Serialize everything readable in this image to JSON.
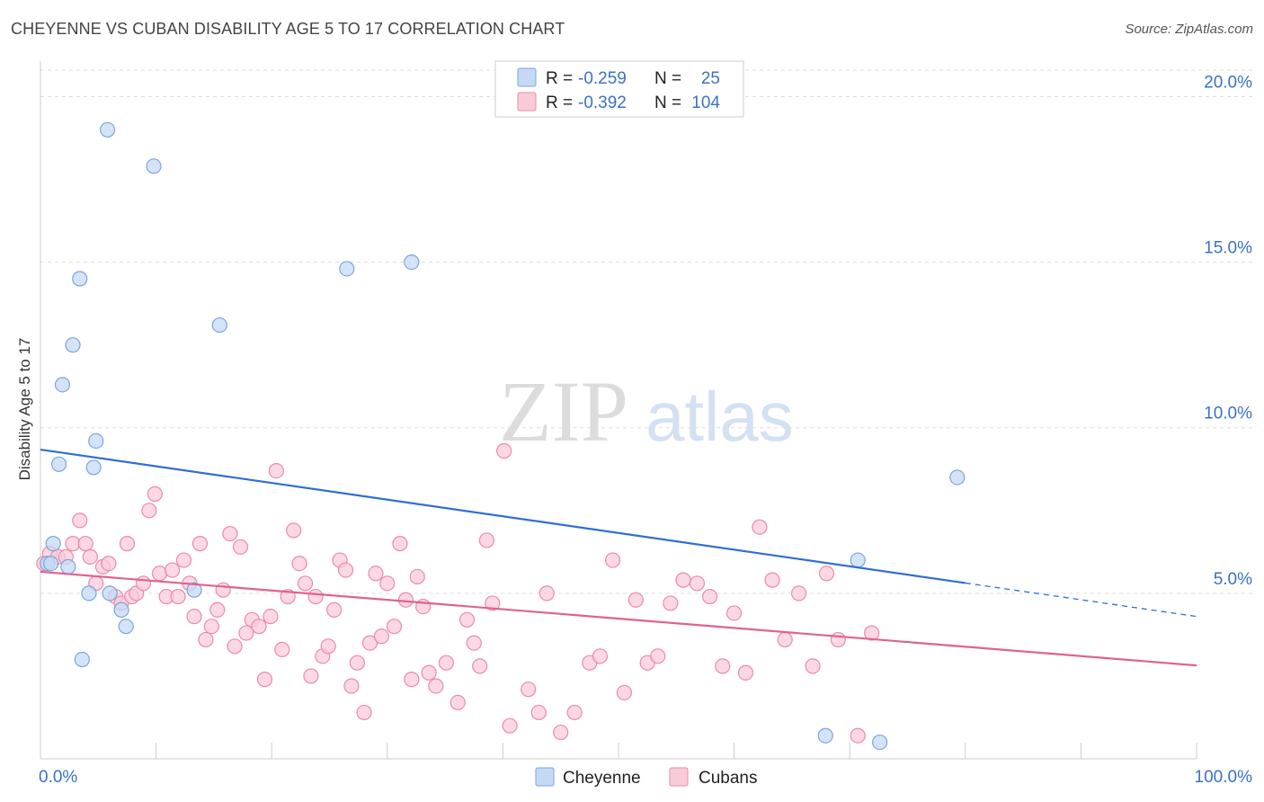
{
  "header": {
    "title": "CHEYENNE VS CUBAN DISABILITY AGE 5 TO 17 CORRELATION CHART",
    "source": "Source: ZipAtlas.com"
  },
  "watermark": {
    "zip": "ZIP",
    "atlas": "atlas"
  },
  "colors": {
    "cheyenne_fill": "#c5d9f5",
    "cheyenne_stroke": "#7aa6df",
    "cheyenne_line": "#2f6fce",
    "cubans_fill": "#f9cbd9",
    "cubans_stroke": "#ec8aa8",
    "cubans_line": "#e0628f",
    "axis_text": "#3a72c4",
    "grid": "#dddddd"
  },
  "legend": {
    "rows": [
      {
        "r_label": "R = ",
        "r_value": "-0.259",
        "n_label": "N = ",
        "n_value": "25"
      },
      {
        "r_label": "R = ",
        "r_value": "-0.392",
        "n_label": "N = ",
        "n_value": "104"
      }
    ]
  },
  "chart_data": {
    "type": "scatter",
    "title": "CHEYENNE VS CUBAN DISABILITY AGE 5 TO 17 CORRELATION CHART",
    "xlabel": "",
    "ylabel": "Disability Age 5 to 17",
    "xlim": [
      0,
      100
    ],
    "ylim": [
      0,
      20.8
    ],
    "x_tick_labels": [
      "0.0%",
      "100.0%"
    ],
    "y_ticks": [
      5,
      10,
      15,
      20
    ],
    "y_tick_labels": [
      "5.0%",
      "10.0%",
      "15.0%",
      "20.0%"
    ],
    "grid": true,
    "legend_position": "bottom",
    "series": [
      {
        "name": "Cheyenne",
        "r": -0.259,
        "n": 25,
        "trend": {
          "x0": 0,
          "y0": 9.34,
          "x1": 80,
          "y1": 5.31,
          "dashed_to_x": 100,
          "dashed_to_y": 4.3
        },
        "points": [
          [
            5.8,
            19.0
          ],
          [
            9.8,
            17.9
          ],
          [
            3.4,
            14.5
          ],
          [
            2.8,
            12.5
          ],
          [
            1.9,
            11.3
          ],
          [
            15.5,
            13.1
          ],
          [
            26.5,
            14.8
          ],
          [
            32.1,
            15.0
          ],
          [
            4.8,
            9.6
          ],
          [
            1.6,
            8.9
          ],
          [
            4.6,
            8.8
          ],
          [
            1.1,
            6.5
          ],
          [
            0.6,
            5.9
          ],
          [
            0.9,
            5.9
          ],
          [
            2.4,
            5.8
          ],
          [
            4.2,
            5.0
          ],
          [
            6.0,
            5.0
          ],
          [
            13.3,
            5.1
          ],
          [
            7.0,
            4.5
          ],
          [
            7.4,
            4.0
          ],
          [
            3.6,
            3.0
          ],
          [
            79.3,
            8.5
          ],
          [
            70.7,
            6.0
          ],
          [
            67.9,
            0.7
          ],
          [
            72.6,
            0.5
          ]
        ]
      },
      {
        "name": "Cubans",
        "r": -0.392,
        "n": 104,
        "trend": {
          "x0": 0,
          "y0": 5.65,
          "x1": 100,
          "y1": 2.82
        },
        "points": [
          [
            0.3,
            5.9
          ],
          [
            0.8,
            6.2
          ],
          [
            1.5,
            6.1
          ],
          [
            2.2,
            6.1
          ],
          [
            2.8,
            6.5
          ],
          [
            3.4,
            7.2
          ],
          [
            3.9,
            6.5
          ],
          [
            4.3,
            6.1
          ],
          [
            4.8,
            5.3
          ],
          [
            5.4,
            5.8
          ],
          [
            5.9,
            5.9
          ],
          [
            6.5,
            4.9
          ],
          [
            7.0,
            4.7
          ],
          [
            7.5,
            6.5
          ],
          [
            7.9,
            4.9
          ],
          [
            8.3,
            5.0
          ],
          [
            8.9,
            5.3
          ],
          [
            9.4,
            7.5
          ],
          [
            9.9,
            8.0
          ],
          [
            10.3,
            5.6
          ],
          [
            10.9,
            4.9
          ],
          [
            11.4,
            5.7
          ],
          [
            11.9,
            4.9
          ],
          [
            12.4,
            6.0
          ],
          [
            12.9,
            5.3
          ],
          [
            13.3,
            4.3
          ],
          [
            13.8,
            6.5
          ],
          [
            14.3,
            3.6
          ],
          [
            14.8,
            4.0
          ],
          [
            15.3,
            4.5
          ],
          [
            15.8,
            5.1
          ],
          [
            16.4,
            6.8
          ],
          [
            16.8,
            3.4
          ],
          [
            17.3,
            6.4
          ],
          [
            17.8,
            3.8
          ],
          [
            18.3,
            4.2
          ],
          [
            18.9,
            4.0
          ],
          [
            19.4,
            2.4
          ],
          [
            19.9,
            4.3
          ],
          [
            20.4,
            8.7
          ],
          [
            20.9,
            3.3
          ],
          [
            21.4,
            4.9
          ],
          [
            21.9,
            6.9
          ],
          [
            22.4,
            5.9
          ],
          [
            22.9,
            5.3
          ],
          [
            23.4,
            2.5
          ],
          [
            23.8,
            4.9
          ],
          [
            24.4,
            3.1
          ],
          [
            24.9,
            3.4
          ],
          [
            25.4,
            4.5
          ],
          [
            25.9,
            6.0
          ],
          [
            26.4,
            5.7
          ],
          [
            26.9,
            2.2
          ],
          [
            27.4,
            2.9
          ],
          [
            28.0,
            1.4
          ],
          [
            28.5,
            3.5
          ],
          [
            29.0,
            5.6
          ],
          [
            29.5,
            3.7
          ],
          [
            30.0,
            5.3
          ],
          [
            30.6,
            4.0
          ],
          [
            31.1,
            6.5
          ],
          [
            31.6,
            4.8
          ],
          [
            32.1,
            2.4
          ],
          [
            32.6,
            5.5
          ],
          [
            33.1,
            4.6
          ],
          [
            33.6,
            2.6
          ],
          [
            34.2,
            2.2
          ],
          [
            35.1,
            2.9
          ],
          [
            36.1,
            1.7
          ],
          [
            36.9,
            4.2
          ],
          [
            37.5,
            3.5
          ],
          [
            38.0,
            2.8
          ],
          [
            38.6,
            6.6
          ],
          [
            39.1,
            4.7
          ],
          [
            40.1,
            9.3
          ],
          [
            40.6,
            1.0
          ],
          [
            42.2,
            2.1
          ],
          [
            43.1,
            1.4
          ],
          [
            43.8,
            5.0
          ],
          [
            45.0,
            0.8
          ],
          [
            46.2,
            1.4
          ],
          [
            47.5,
            2.9
          ],
          [
            48.4,
            3.1
          ],
          [
            49.5,
            6.0
          ],
          [
            50.5,
            2.0
          ],
          [
            51.5,
            4.8
          ],
          [
            52.5,
            2.9
          ],
          [
            53.4,
            3.1
          ],
          [
            54.5,
            4.7
          ],
          [
            55.6,
            5.4
          ],
          [
            56.8,
            5.3
          ],
          [
            57.9,
            4.9
          ],
          [
            59.0,
            2.8
          ],
          [
            60.0,
            4.4
          ],
          [
            61.0,
            2.6
          ],
          [
            62.2,
            7.0
          ],
          [
            63.3,
            5.4
          ],
          [
            64.4,
            3.6
          ],
          [
            65.6,
            5.0
          ],
          [
            66.8,
            2.8
          ],
          [
            68.0,
            5.6
          ],
          [
            69.0,
            3.6
          ],
          [
            70.7,
            0.7
          ],
          [
            71.9,
            3.8
          ]
        ]
      }
    ]
  }
}
